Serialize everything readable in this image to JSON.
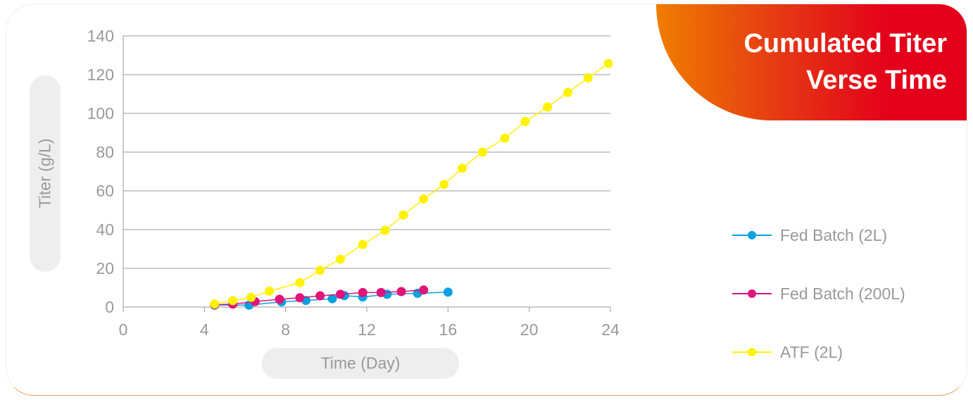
{
  "title": "Cumulated Titer\nVerse Time",
  "chart_data": {
    "type": "line",
    "xlabel": "Time (Day)",
    "ylabel": "Titer (g/L)",
    "xlim": [
      0,
      24
    ],
    "ylim": [
      0,
      140
    ],
    "xticks": [
      0,
      4,
      8,
      12,
      16,
      20,
      24
    ],
    "yticks": [
      0,
      20,
      40,
      60,
      80,
      100,
      120,
      140
    ],
    "grid": "horizontal",
    "legend_position": "right",
    "series": [
      {
        "name": "Fed Batch (2L)",
        "color": "#0aa0e0",
        "x": [
          4.5,
          6.2,
          7.8,
          9.0,
          10.3,
          10.9,
          11.8,
          13.0,
          14.5,
          16.0
        ],
        "y": [
          1.0,
          1.0,
          2.7,
          3.4,
          4.3,
          5.9,
          5.2,
          6.6,
          7.1,
          7.7
        ]
      },
      {
        "name": "Fed Batch (200L)",
        "color": "#e0147a",
        "x": [
          4.5,
          5.4,
          6.5,
          7.7,
          8.7,
          9.7,
          10.7,
          11.8,
          12.7,
          13.7,
          14.8
        ],
        "y": [
          1.2,
          1.5,
          2.8,
          4.0,
          4.8,
          5.8,
          6.6,
          7.5,
          7.5,
          8.0,
          8.8
        ]
      },
      {
        "name": "ATF (2L)",
        "color": "#fff200",
        "x": [
          4.5,
          5.4,
          6.3,
          7.2,
          8.7,
          9.7,
          10.7,
          11.8,
          12.9,
          13.8,
          14.8,
          15.8,
          16.7,
          17.7,
          18.8,
          19.8,
          20.9,
          21.9,
          22.9,
          23.9
        ],
        "y": [
          1.6,
          3.3,
          5.0,
          8.2,
          12.6,
          19.0,
          24.7,
          32.3,
          39.6,
          47.5,
          55.8,
          63.3,
          71.7,
          80.0,
          87.2,
          95.8,
          103.3,
          110.8,
          118.3,
          125.8
        ]
      }
    ]
  }
}
